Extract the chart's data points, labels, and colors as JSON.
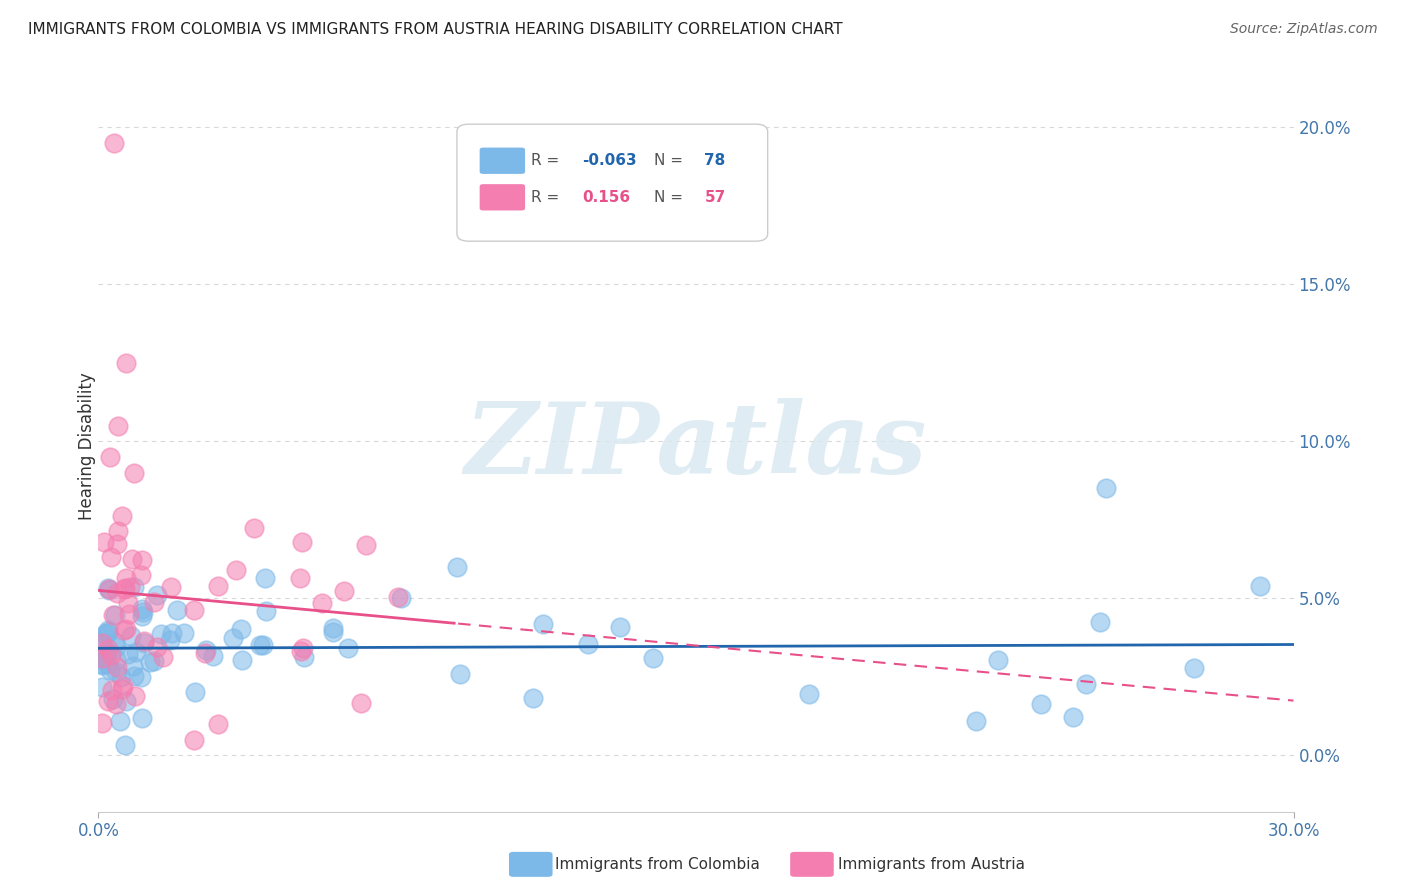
{
  "title": "IMMIGRANTS FROM COLOMBIA VS IMMIGRANTS FROM AUSTRIA HEARING DISABILITY CORRELATION CHART",
  "source": "Source: ZipAtlas.com",
  "ylabel": "Hearing Disability",
  "xmin": 0.0,
  "xmax": 0.3,
  "ymin": -0.018,
  "ymax": 0.215,
  "series1_name": "Immigrants from Colombia",
  "series1_color": "#7cb8e8",
  "series1_R": -0.063,
  "series1_N": 78,
  "series2_name": "Immigrants from Austria",
  "series2_color": "#f47eb0",
  "series2_R": 0.156,
  "series2_N": 57,
  "watermark_text": "ZIPatlas",
  "background_color": "#ffffff",
  "grid_color": "#d8d8d8",
  "y_ticks": [
    0.0,
    0.05,
    0.1,
    0.15,
    0.2
  ],
  "y_tick_labels": [
    "0.0%",
    "5.0%",
    "10.0%",
    "15.0%",
    "20.0%"
  ]
}
